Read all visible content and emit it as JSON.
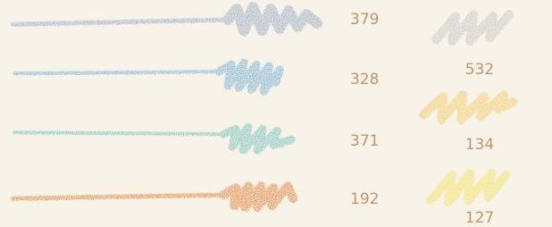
{
  "swatches": {
    "left": [
      {
        "label": 379
      },
      {
        "label": 328
      },
      {
        "label": 371
      },
      {
        "label": 192
      }
    ],
    "right": [
      {
        "label": 532
      },
      {
        "label": 134
      },
      {
        "label": 127
      }
    ]
  }
}
